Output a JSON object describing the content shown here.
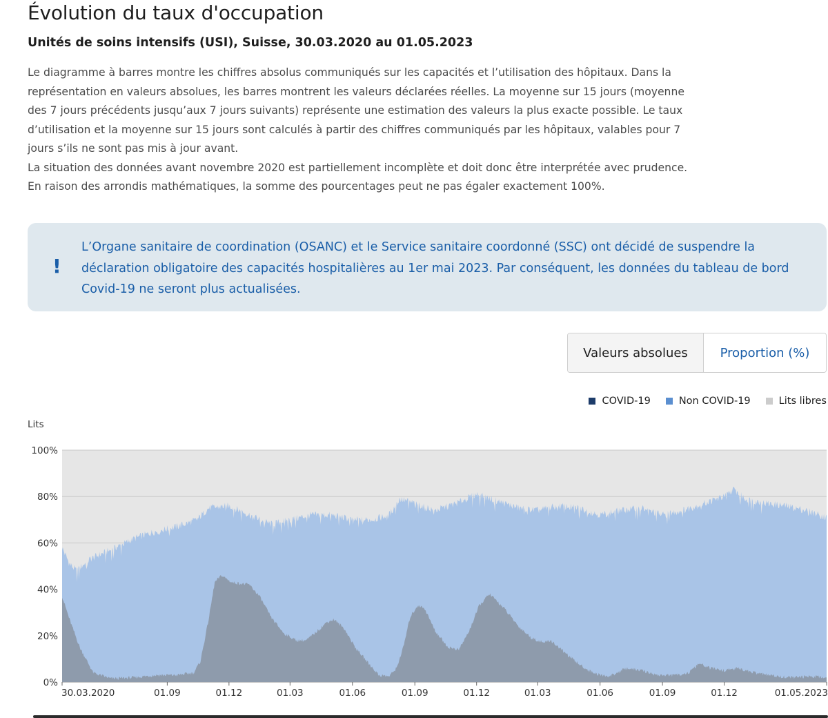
{
  "header": {
    "title": "Évolution du taux d'occupation",
    "subtitle": "Unités de soins intensifs (USI), Suisse, 30.03.2020 au 01.05.2023"
  },
  "description": {
    "paragraph1": "Le diagramme à barres montre les chiffres absolus communiqués sur les capacités et l’utilisation des hôpitaux. Dans la représentation en valeurs absolues, les barres montrent les valeurs déclarées réelles. La moyenne sur 15 jours (moyenne des 7 jours précédents jusqu’aux 7 jours suivants) représente une estimation des valeurs la plus exacte possible. Le taux d’utilisation et la moyenne sur 15 jours sont calculés à partir des chiffres communiqués par les hôpitaux, valables pour 7 jours s’ils ne sont pas mis à jour avant.",
    "paragraph2": "La situation des données avant novembre 2020 est partiellement incomplète et doit donc être interprétée avec prudence. En raison des arrondis mathématiques, la somme des pourcentages peut ne pas égaler exactement 100%."
  },
  "notice": {
    "icon": "exclamation-icon",
    "text": "L’Organe sanitaire de coordination (OSANC) et le Service sanitaire coordonné (SSC) ont décidé de suspendre la déclaration obligatoire des capacités hospitalières au 1er mai 2023. Par conséquent, les données du tableau de bord Covid-19 ne seront plus actualisées."
  },
  "toggle": {
    "absolute_label": "Valeurs absolues",
    "proportion_label": "Proportion (%)",
    "selected": "Proportion (%)"
  },
  "legend": [
    {
      "label": "COVID-19",
      "color": "#1d3c6a"
    },
    {
      "label": "Non COVID-19",
      "color": "#5b8fd0"
    },
    {
      "label": "Lits libres",
      "color": "#cccccc"
    }
  ],
  "colors": {
    "covid_fill": "#8e9bac",
    "total_fill": "#a9c4e7",
    "free_fill": "#e6e6e6",
    "accent": "#1a5ea8",
    "notice_bg": "#dfe8ee"
  },
  "chart_data": {
    "type": "area",
    "title": "Évolution du taux d'occupation",
    "ylabel": "Lits",
    "xlabel": "",
    "ylim": [
      0,
      100
    ],
    "y_ticks": [
      "0%",
      "20%",
      "40%",
      "60%",
      "80%",
      "100%"
    ],
    "x_ticks": [
      "30.03.2020",
      "01.09",
      "01.12",
      "01.03",
      "01.06",
      "01.09",
      "01.12",
      "01.03",
      "01.06",
      "01.09",
      "01.12",
      "01.05.2023"
    ],
    "x_start": "2020-03-30",
    "x_end": "2023-05-01",
    "stacking": "percent",
    "series": [
      {
        "name": "COVID-19",
        "unit": "% of beds",
        "points": [
          [
            "2020-03-30",
            37
          ],
          [
            "2020-04-10",
            27
          ],
          [
            "2020-04-25",
            15
          ],
          [
            "2020-05-15",
            4
          ],
          [
            "2020-06-10",
            1.5
          ],
          [
            "2020-07-15",
            2
          ],
          [
            "2020-08-15",
            3
          ],
          [
            "2020-09-15",
            3
          ],
          [
            "2020-10-10",
            4
          ],
          [
            "2020-10-20",
            9
          ],
          [
            "2020-11-01",
            27
          ],
          [
            "2020-11-10",
            43
          ],
          [
            "2020-11-20",
            46
          ],
          [
            "2020-12-05",
            43
          ],
          [
            "2020-12-31",
            42
          ],
          [
            "2021-01-15",
            37
          ],
          [
            "2021-02-01",
            28
          ],
          [
            "2021-02-20",
            21
          ],
          [
            "2021-03-10",
            18
          ],
          [
            "2021-03-25",
            18
          ],
          [
            "2021-04-10",
            22
          ],
          [
            "2021-04-25",
            26
          ],
          [
            "2021-05-05",
            27
          ],
          [
            "2021-05-20",
            23
          ],
          [
            "2021-06-05",
            15
          ],
          [
            "2021-06-25",
            8
          ],
          [
            "2021-07-10",
            3
          ],
          [
            "2021-07-25",
            2.5
          ],
          [
            "2021-08-05",
            6
          ],
          [
            "2021-08-15",
            15
          ],
          [
            "2021-08-25",
            28
          ],
          [
            "2021-09-05",
            33
          ],
          [
            "2021-09-15",
            32
          ],
          [
            "2021-10-01",
            22
          ],
          [
            "2021-10-20",
            15
          ],
          [
            "2021-11-05",
            14
          ],
          [
            "2021-11-20",
            22
          ],
          [
            "2021-12-05",
            33
          ],
          [
            "2021-12-20",
            38
          ],
          [
            "2022-01-10",
            32
          ],
          [
            "2022-02-01",
            24
          ],
          [
            "2022-02-20",
            19
          ],
          [
            "2022-03-10",
            17
          ],
          [
            "2022-03-20",
            18
          ],
          [
            "2022-04-05",
            14
          ],
          [
            "2022-04-25",
            9
          ],
          [
            "2022-05-15",
            5
          ],
          [
            "2022-06-01",
            3
          ],
          [
            "2022-06-15",
            2.5
          ],
          [
            "2022-07-10",
            6
          ],
          [
            "2022-08-01",
            5
          ],
          [
            "2022-08-25",
            3
          ],
          [
            "2022-09-20",
            3
          ],
          [
            "2022-10-10",
            4
          ],
          [
            "2022-10-25",
            8
          ],
          [
            "2022-11-10",
            6
          ],
          [
            "2022-12-01",
            5
          ],
          [
            "2022-12-20",
            6
          ],
          [
            "2023-01-15",
            4
          ],
          [
            "2023-02-15",
            2.5
          ],
          [
            "2023-03-15",
            2
          ],
          [
            "2023-04-10",
            2.5
          ],
          [
            "2023-05-01",
            2
          ]
        ]
      },
      {
        "name": "Non COVID-19",
        "unit": "% of beds (top of stack = COVID-19 + Non COVID-19)",
        "points": [
          [
            "2020-03-30",
            58
          ],
          [
            "2020-04-10",
            51
          ],
          [
            "2020-04-20",
            48
          ],
          [
            "2020-05-10",
            53
          ],
          [
            "2020-06-10",
            57
          ],
          [
            "2020-07-15",
            62
          ],
          [
            "2020-08-15",
            65
          ],
          [
            "2020-09-15",
            67
          ],
          [
            "2020-10-15",
            70
          ],
          [
            "2020-11-01",
            75
          ],
          [
            "2020-12-01",
            76
          ],
          [
            "2021-01-01",
            72
          ],
          [
            "2021-02-01",
            68
          ],
          [
            "2021-03-01",
            70
          ],
          [
            "2021-04-01",
            72
          ],
          [
            "2021-05-01",
            72
          ],
          [
            "2021-06-01",
            70
          ],
          [
            "2021-07-01",
            70
          ],
          [
            "2021-07-25",
            72
          ],
          [
            "2021-08-10",
            79
          ],
          [
            "2021-09-01",
            77
          ],
          [
            "2021-10-01",
            74
          ],
          [
            "2021-11-01",
            77
          ],
          [
            "2021-12-01",
            81
          ],
          [
            "2022-01-01",
            78
          ],
          [
            "2022-02-01",
            75
          ],
          [
            "2022-03-01",
            74
          ],
          [
            "2022-04-01",
            76
          ],
          [
            "2022-05-01",
            75
          ],
          [
            "2022-06-01",
            72
          ],
          [
            "2022-07-01",
            74
          ],
          [
            "2022-08-01",
            75
          ],
          [
            "2022-09-01",
            72
          ],
          [
            "2022-10-01",
            74
          ],
          [
            "2022-11-01",
            77
          ],
          [
            "2022-12-01",
            80
          ],
          [
            "2022-12-15",
            83
          ],
          [
            "2023-01-01",
            79
          ],
          [
            "2023-02-01",
            77
          ],
          [
            "2023-03-01",
            76
          ],
          [
            "2023-04-01",
            74
          ],
          [
            "2023-05-01",
            71
          ]
        ]
      },
      {
        "name": "Lits libres",
        "unit": "% of beds (remainder up to 100%)",
        "points": [
          [
            "2020-03-30",
            100
          ],
          [
            "2023-05-01",
            100
          ]
        ]
      }
    ]
  }
}
